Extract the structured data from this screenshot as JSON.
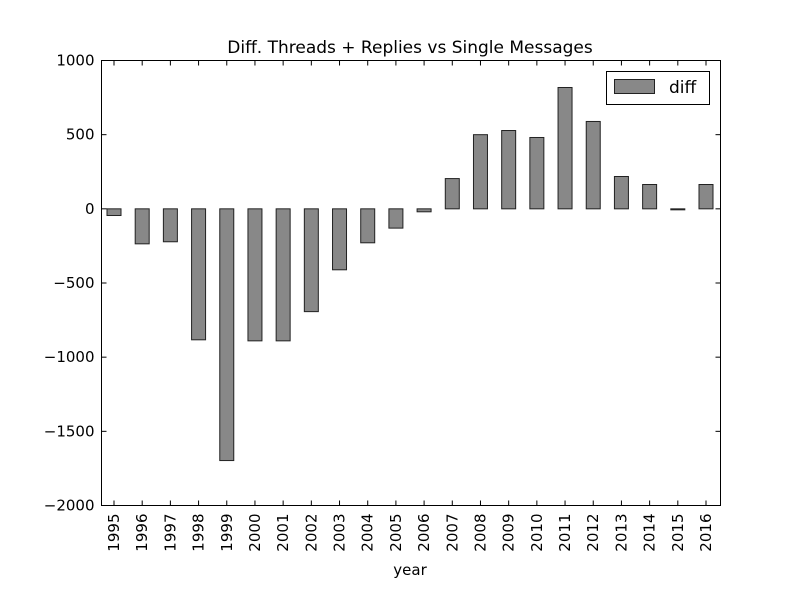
{
  "chart_data": {
    "type": "bar",
    "title": "Diff. Threads + Replies vs Single Messages",
    "xlabel": "year",
    "ylabel": "",
    "ylim": [
      -2000,
      1000
    ],
    "yticks": [
      1000,
      500,
      0,
      -500,
      -1000,
      -1500,
      -2000
    ],
    "ytick_labels": [
      "1000",
      "500",
      "0",
      "−500",
      "−1000",
      "−1500",
      "−2000"
    ],
    "grid": false,
    "legend": {
      "placement": "top-right",
      "entries": [
        "diff"
      ]
    },
    "bar_color": "#888888",
    "categories": [
      "1995",
      "1996",
      "1997",
      "1998",
      "1999",
      "2000",
      "2001",
      "2002",
      "2003",
      "2004",
      "2005",
      "2006",
      "2007",
      "2008",
      "2009",
      "2010",
      "2011",
      "2012",
      "2013",
      "2014",
      "2015",
      "2016"
    ],
    "series": [
      {
        "name": "diff",
        "values": [
          -45,
          -236,
          -222,
          -883,
          -1697,
          -890,
          -890,
          -693,
          -411,
          -229,
          -130,
          -20,
          204,
          500,
          528,
          481,
          818,
          589,
          218,
          164,
          -2,
          164
        ]
      }
    ]
  }
}
